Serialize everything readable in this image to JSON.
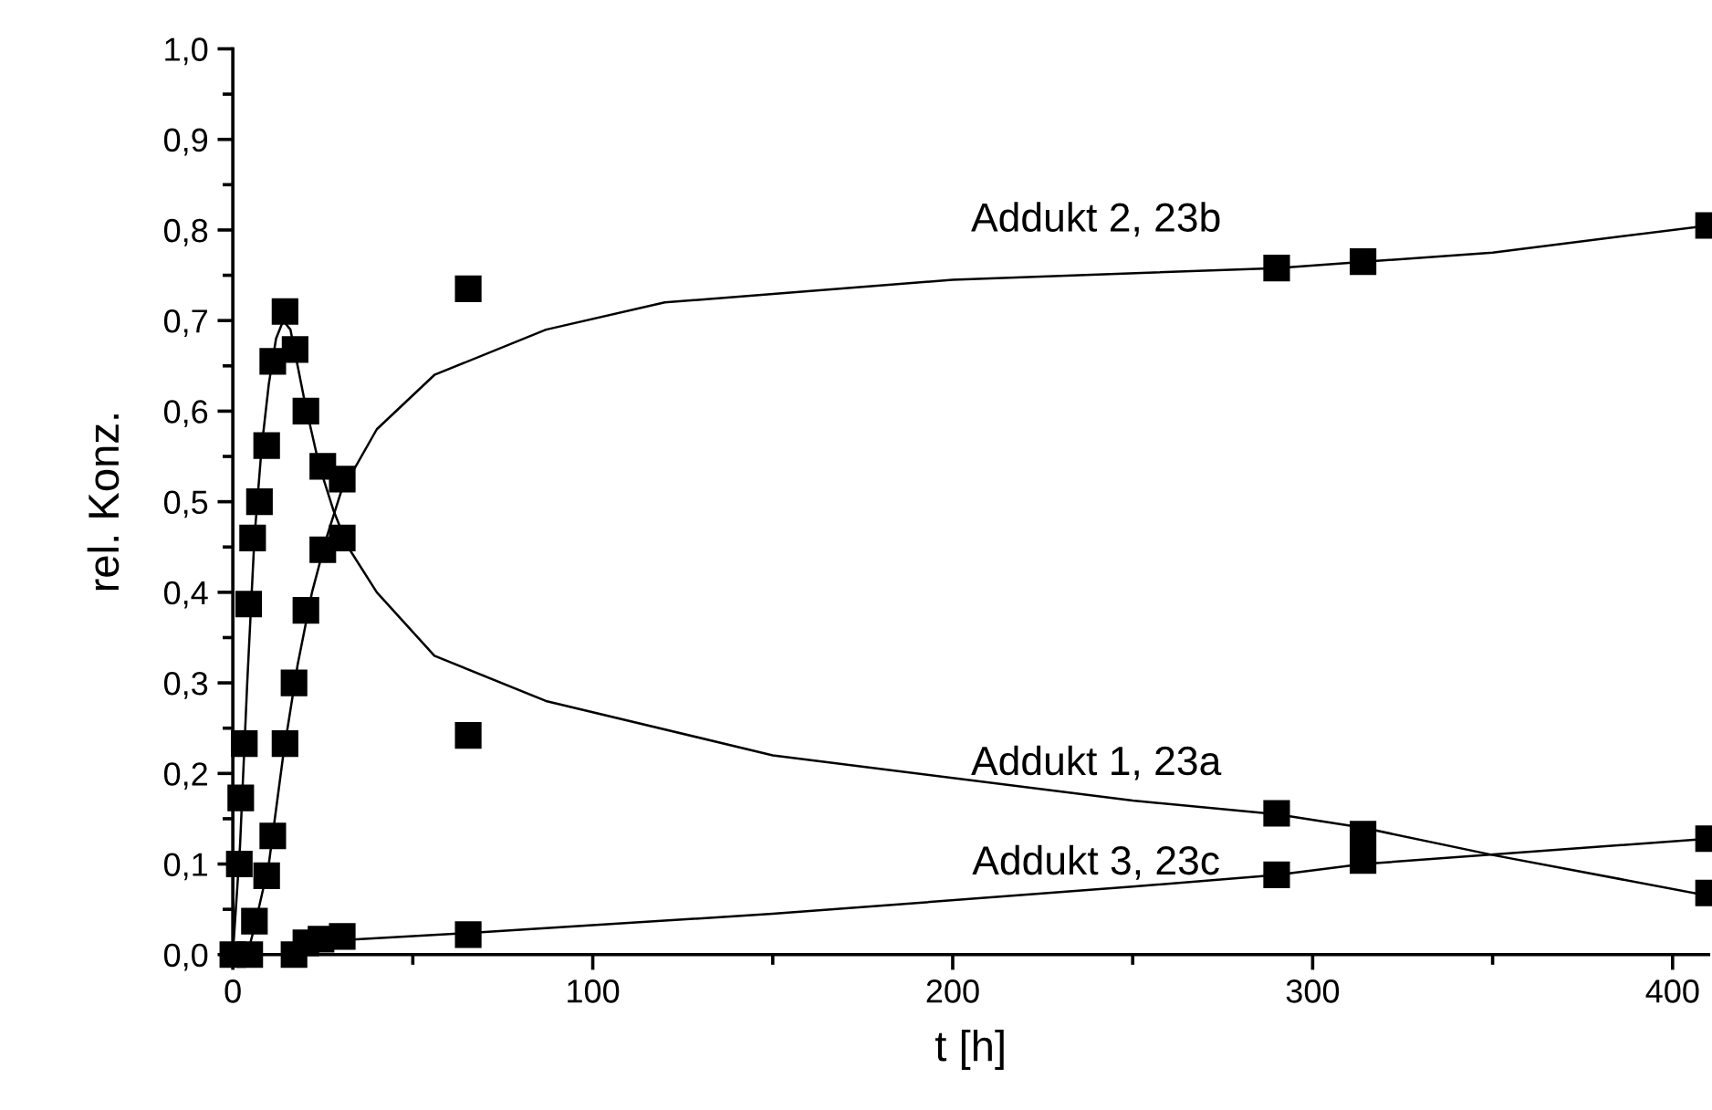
{
  "chart_data": {
    "type": "scatter",
    "xlabel": "t [h]",
    "ylabel": "rel. Konz.",
    "xlim": [
      0,
      410
    ],
    "xticks": [
      0,
      100,
      200,
      300,
      400
    ],
    "ylim": [
      0,
      1.0
    ],
    "yticks": [
      {
        "value": 0,
        "label": "0,0"
      },
      {
        "value": 0.1,
        "label": "0,1"
      },
      {
        "value": 0.2,
        "label": "0,2"
      },
      {
        "value": 0.3,
        "label": "0,3"
      },
      {
        "value": 0.4,
        "label": "0,4"
      },
      {
        "value": 0.5,
        "label": "0,5"
      },
      {
        "value": 0.6,
        "label": "0,6"
      },
      {
        "value": 0.7,
        "label": "0,7"
      },
      {
        "value": 0.8,
        "label": "0,8"
      },
      {
        "value": 0.9,
        "label": "0,9"
      },
      {
        "value": 1.0,
        "label": "1,0"
      }
    ],
    "grid": false,
    "legend": false,
    "marker": "square",
    "series": [
      {
        "color": "#000000",
        "x": [
          0,
          0.7,
          1.8,
          2.2,
          3.2,
          4.4,
          5.5,
          7.4,
          9.4,
          11.1,
          14.5,
          17.3,
          20.3,
          25,
          30.4,
          65.4,
          290,
          314,
          410
        ],
        "values": [
          0,
          null,
          0.1,
          0.173,
          0.233,
          0.387,
          0.46,
          0.5,
          0.562,
          0.655,
          0.71,
          0.668,
          0.6,
          0.539,
          0.46,
          0.242,
          0.156,
          0.133,
          0.068
        ]
      },
      {
        "color": "#000000",
        "x": [
          4.7,
          6,
          9.4,
          11.1,
          14.5,
          17,
          20.3,
          25,
          30.4,
          65.4,
          290,
          314,
          410
        ],
        "values": [
          0,
          0.037,
          0.087,
          0.131,
          0.233,
          0.3,
          0.38,
          0.447,
          0.525,
          0.735,
          0.758,
          0.765,
          0.805
        ]
      },
      {
        "color": "#000000",
        "x": [
          17,
          20.3,
          24.5,
          30.4,
          65.4,
          290,
          314,
          410
        ],
        "values": [
          0,
          0.013,
          0.017,
          0.02,
          0.022,
          0.088,
          0.104,
          0.128
        ]
      },
      {
        "type": "line",
        "name": "Addukt 1, 23a",
        "color": "#000000",
        "marker": "none",
        "x": [
          0,
          2,
          4,
          6,
          8,
          10,
          12,
          14,
          16,
          18,
          20,
          24,
          28,
          32,
          40,
          56,
          87,
          150,
          250,
          290,
          314,
          350,
          410
        ],
        "values": [
          0,
          0.12,
          0.3,
          0.46,
          0.56,
          0.63,
          0.68,
          0.7,
          0.69,
          0.65,
          0.61,
          0.54,
          0.49,
          0.45,
          0.4,
          0.33,
          0.28,
          0.22,
          0.17,
          0.155,
          0.14,
          0.11,
          0.065
        ]
      },
      {
        "type": "line",
        "name": "Addukt 2, 23b",
        "color": "#000000",
        "marker": "none",
        "x": [
          0,
          4,
          6,
          10,
          14,
          18,
          22,
          26,
          30,
          40,
          56,
          87,
          120,
          200,
          290,
          350,
          410
        ],
        "values": [
          0,
          0,
          0.03,
          0.1,
          0.22,
          0.32,
          0.4,
          0.46,
          0.51,
          0.58,
          0.64,
          0.69,
          0.72,
          0.745,
          0.758,
          0.775,
          0.805
        ]
      },
      {
        "type": "line",
        "name": "Addukt 3, 23c",
        "color": "#000000",
        "marker": "none",
        "x": [
          15,
          30,
          66,
          150,
          250,
          290,
          314,
          410
        ],
        "values": [
          0.008,
          0.016,
          0.024,
          0.045,
          0.075,
          0.088,
          0.1,
          0.128
        ]
      }
    ]
  }
}
